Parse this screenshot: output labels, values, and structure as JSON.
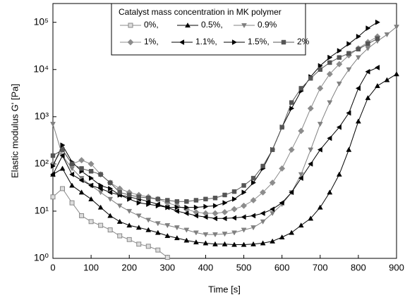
{
  "chart_data": {
    "type": "line",
    "xlabel": "Time [s]",
    "ylabel": "Elastic modulus G' [Pa]",
    "legend_title": "Catalyst mass concentration in MK polymer",
    "legend_position": "upper center",
    "log_y": true,
    "xlim": [
      0,
      900
    ],
    "xticks": [
      0,
      100,
      200,
      300,
      400,
      500,
      600,
      700,
      800,
      900
    ],
    "ylim": [
      1,
      250000
    ],
    "yticks": [
      {
        "value": 1,
        "label": "10⁰"
      },
      {
        "value": 10,
        "label": "10¹"
      },
      {
        "value": 100,
        "label": "10²"
      },
      {
        "value": 1000,
        "label": "10³"
      },
      {
        "value": 10000,
        "label": "10⁴"
      },
      {
        "value": 100000,
        "label": "10⁵"
      }
    ],
    "x": [
      0,
      25,
      50,
      75,
      100,
      125,
      150,
      175,
      200,
      225,
      250,
      275,
      300,
      325,
      350,
      375,
      400,
      425,
      450,
      475,
      500,
      525,
      550,
      575,
      600,
      625,
      650,
      675,
      700,
      725,
      750,
      775,
      800,
      825,
      850,
      875,
      900
    ],
    "series": [
      {
        "name": "0%,",
        "color": "#888888",
        "marker": "square-open",
        "values": [
          20,
          30,
          15,
          8,
          6,
          5,
          4,
          3,
          2.5,
          2,
          1.8,
          1.5,
          1.05,
          null,
          null,
          null,
          null,
          null,
          null,
          null,
          null,
          null,
          null,
          null,
          null,
          null,
          null,
          null,
          null,
          null,
          null,
          null,
          null,
          null,
          null,
          null,
          null
        ]
      },
      {
        "name": "0.5%,",
        "color": "#000000",
        "marker": "triangle-up",
        "values": [
          60,
          80,
          35,
          25,
          18,
          12,
          8,
          6,
          5,
          4.5,
          4,
          3.5,
          3,
          2.7,
          2.4,
          2.2,
          2.1,
          2,
          2,
          1.95,
          1.95,
          2,
          2.1,
          2.3,
          2.8,
          3.5,
          5,
          7,
          12,
          25,
          60,
          200,
          800,
          2500,
          4500,
          6000,
          8000
        ]
      },
      {
        "name": "0.9%",
        "color": "#808080",
        "marker": "triangle-down",
        "values": [
          700,
          150,
          80,
          50,
          35,
          25,
          18,
          13,
          10,
          8,
          6.5,
          5.5,
          5,
          4.5,
          4,
          3.5,
          3.2,
          3.2,
          3.3,
          3.5,
          4,
          4.5,
          6,
          9,
          14,
          25,
          60,
          200,
          700,
          2000,
          5000,
          10000,
          18000,
          28000,
          40000,
          55000,
          80000
        ]
      },
      {
        "name": "1%,",
        "color": "#8c8c8c",
        "marker": "diamond",
        "values": [
          100,
          200,
          100,
          120,
          100,
          60,
          40,
          30,
          25,
          22,
          20,
          18,
          15,
          13,
          11,
          9.5,
          9,
          9,
          9.5,
          11,
          13,
          17,
          25,
          40,
          80,
          200,
          500,
          1500,
          4000,
          8000,
          13000,
          20000,
          28000,
          38000,
          50000,
          null,
          null
        ]
      },
      {
        "name": "1.1%,",
        "color": "#000000",
        "marker": "triangle-left",
        "values": [
          60,
          150,
          60,
          45,
          35,
          30,
          25,
          22,
          20,
          18,
          16,
          14,
          12,
          10,
          9,
          8,
          7.5,
          7,
          7,
          7.2,
          7.5,
          8,
          9,
          11,
          15,
          25,
          50,
          100,
          200,
          350,
          600,
          1200,
          4000,
          9000,
          11000,
          null,
          null
        ]
      },
      {
        "name": "1.5%,",
        "color": "#000000",
        "marker": "triangle-right",
        "values": [
          90,
          250,
          110,
          70,
          50,
          35,
          30,
          22,
          18,
          15,
          14,
          13,
          12,
          12,
          12,
          12,
          12.5,
          13,
          15,
          18,
          25,
          40,
          80,
          200,
          600,
          1500,
          3500,
          7000,
          12000,
          18000,
          25000,
          35000,
          50000,
          75000,
          100000,
          null,
          null
        ]
      },
      {
        "name": "2%",
        "color": "#555555",
        "marker": "square",
        "values": [
          150,
          200,
          100,
          80,
          70,
          60,
          40,
          25,
          22,
          20,
          19,
          18,
          17,
          16,
          16,
          17,
          18,
          19,
          22,
          26,
          35,
          50,
          90,
          200,
          600,
          2000,
          4000,
          6500,
          10000,
          14000,
          18000,
          22000,
          27000,
          35000,
          45000,
          null,
          null
        ]
      }
    ]
  }
}
